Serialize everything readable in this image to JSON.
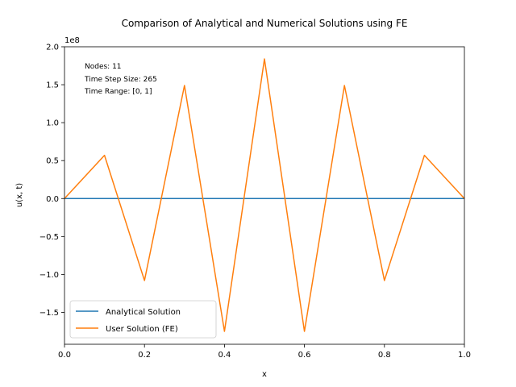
{
  "chart_data": {
    "type": "line",
    "title": "Comparison of Analytical and Numerical Solutions using FE",
    "xlabel": "x",
    "ylabel": "u(x, t)",
    "xlim": [
      0.0,
      1.0
    ],
    "ylim": [
      -192000000.0,
      200000000.0
    ],
    "y_multiplier_label": "1e8",
    "x_ticks": [
      0.0,
      0.2,
      0.4,
      0.6,
      0.8,
      1.0
    ],
    "x_tick_labels": [
      "0.0",
      "0.2",
      "0.4",
      "0.6",
      "0.8",
      "1.0"
    ],
    "y_ticks": [
      -150000000.0,
      -100000000.0,
      -50000000.0,
      0.0,
      50000000.0,
      100000000.0,
      150000000.0,
      200000000.0
    ],
    "y_tick_labels": [
      "−1.5",
      "−1.0",
      "−0.5",
      "0.0",
      "0.5",
      "1.0",
      "1.5",
      "2.0"
    ],
    "grid": false,
    "legend_position": "lower-left",
    "annotations": [
      "Nodes: 11",
      "Time Step Size: 265",
      "Time Range: [0, 1]"
    ],
    "x": [
      0.0,
      0.1,
      0.2,
      0.3,
      0.4,
      0.5,
      0.6,
      0.7,
      0.8,
      0.9,
      1.0
    ],
    "series": [
      {
        "name": "Analytical Solution",
        "color": "#1f77b4",
        "values": [
          0,
          0,
          0,
          0,
          0,
          0,
          0,
          0,
          0,
          0,
          0
        ]
      },
      {
        "name": "User Solution (FE)",
        "color": "#ff7f0e",
        "values": [
          0,
          57000000.0,
          -108000000.0,
          149000000.0,
          -175000000.0,
          184000000.0,
          -175000000.0,
          149000000.0,
          -108000000.0,
          57000000.0,
          0
        ]
      }
    ]
  }
}
